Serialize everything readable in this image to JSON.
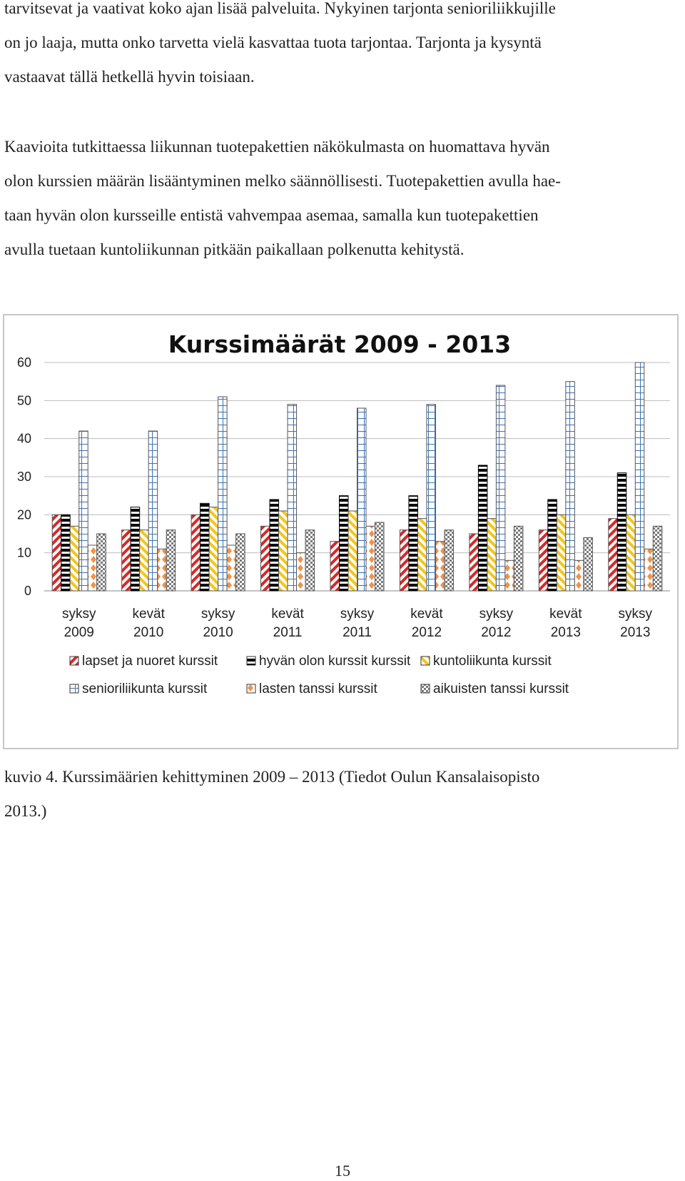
{
  "paragraphs": [
    {
      "lines": [
        "tarvitsevat ja vaativat koko ajan lisää palveluita. Nykyinen tarjonta senioriliikkujille",
        "on jo laaja, mutta onko tarvetta vielä kasvattaa tuota tarjontaa. Tarjonta ja kysyntä",
        "vastaavat tällä hetkellä hyvin toisiaan."
      ]
    },
    {
      "lines": [
        "Kaavioita tutkittaessa liikunnan tuotepakettien näkökulmasta on huomattava hyvän",
        "olon kurssien määrän lisääntyminen melko säännöllisesti. Tuotepakettien avulla hae-",
        "taan hyvän olon kursseille entistä vahvempaa asemaa, samalla kun tuotepakettien",
        "avulla tuetaan kuntoliikunnan pitkään paikallaan polkenutta kehitystä."
      ]
    }
  ],
  "caption": {
    "lines": [
      "kuvio 4. Kurssimäärien kehittyminen 2009 – 2013 (Tiedot Oulun Kansalaisopisto",
      "2013.)"
    ]
  },
  "page_number": "15",
  "chart_data": {
    "type": "bar",
    "title": "Kurssimäärät 2009 - 2013",
    "xlabel": "",
    "ylabel": "",
    "ylim": [
      0,
      60
    ],
    "yticks": [
      0,
      10,
      20,
      30,
      40,
      50,
      60
    ],
    "grid": true,
    "legend_position": "bottom",
    "categories": [
      [
        "syksy",
        "2009"
      ],
      [
        "kevät",
        "2010"
      ],
      [
        "syksy",
        "2010"
      ],
      [
        "kevät",
        "2011"
      ],
      [
        "syksy",
        "2011"
      ],
      [
        "kevät",
        "2012"
      ],
      [
        "syksy",
        "2012"
      ],
      [
        "kevät",
        "2013"
      ],
      [
        "syksy",
        "2013"
      ]
    ],
    "series": [
      {
        "name": "lapset ja nuoret kurssit",
        "pattern": "red-stripes",
        "color": "#d62828",
        "values": [
          20,
          16,
          20,
          17,
          13,
          16,
          15,
          16,
          19
        ]
      },
      {
        "name": "hyvän olon kurssit kurssit",
        "pattern": "black-ladder",
        "color": "#000000",
        "values": [
          20,
          22,
          23,
          24,
          25,
          25,
          33,
          24,
          31
        ]
      },
      {
        "name": "kuntoliikunta kurssit",
        "pattern": "yellow-stripes",
        "color": "#f5c518",
        "values": [
          17,
          16,
          22,
          21,
          21,
          19,
          19,
          20,
          20
        ]
      },
      {
        "name": "senioriliikunta kurssit",
        "pattern": "blue-grid",
        "color": "#3b72b5",
        "values": [
          42,
          42,
          51,
          49,
          48,
          49,
          54,
          55,
          60
        ]
      },
      {
        "name": "lasten tanssi kurssit",
        "pattern": "orange-diamonds",
        "color": "#f0924a",
        "values": [
          12,
          11,
          12,
          10,
          17,
          13,
          8,
          8,
          11
        ]
      },
      {
        "name": "aikuisten tanssi kurssit",
        "pattern": "gray-checks",
        "color": "#7a7a7a",
        "values": [
          15,
          16,
          15,
          16,
          18,
          16,
          17,
          14,
          17
        ]
      }
    ]
  }
}
